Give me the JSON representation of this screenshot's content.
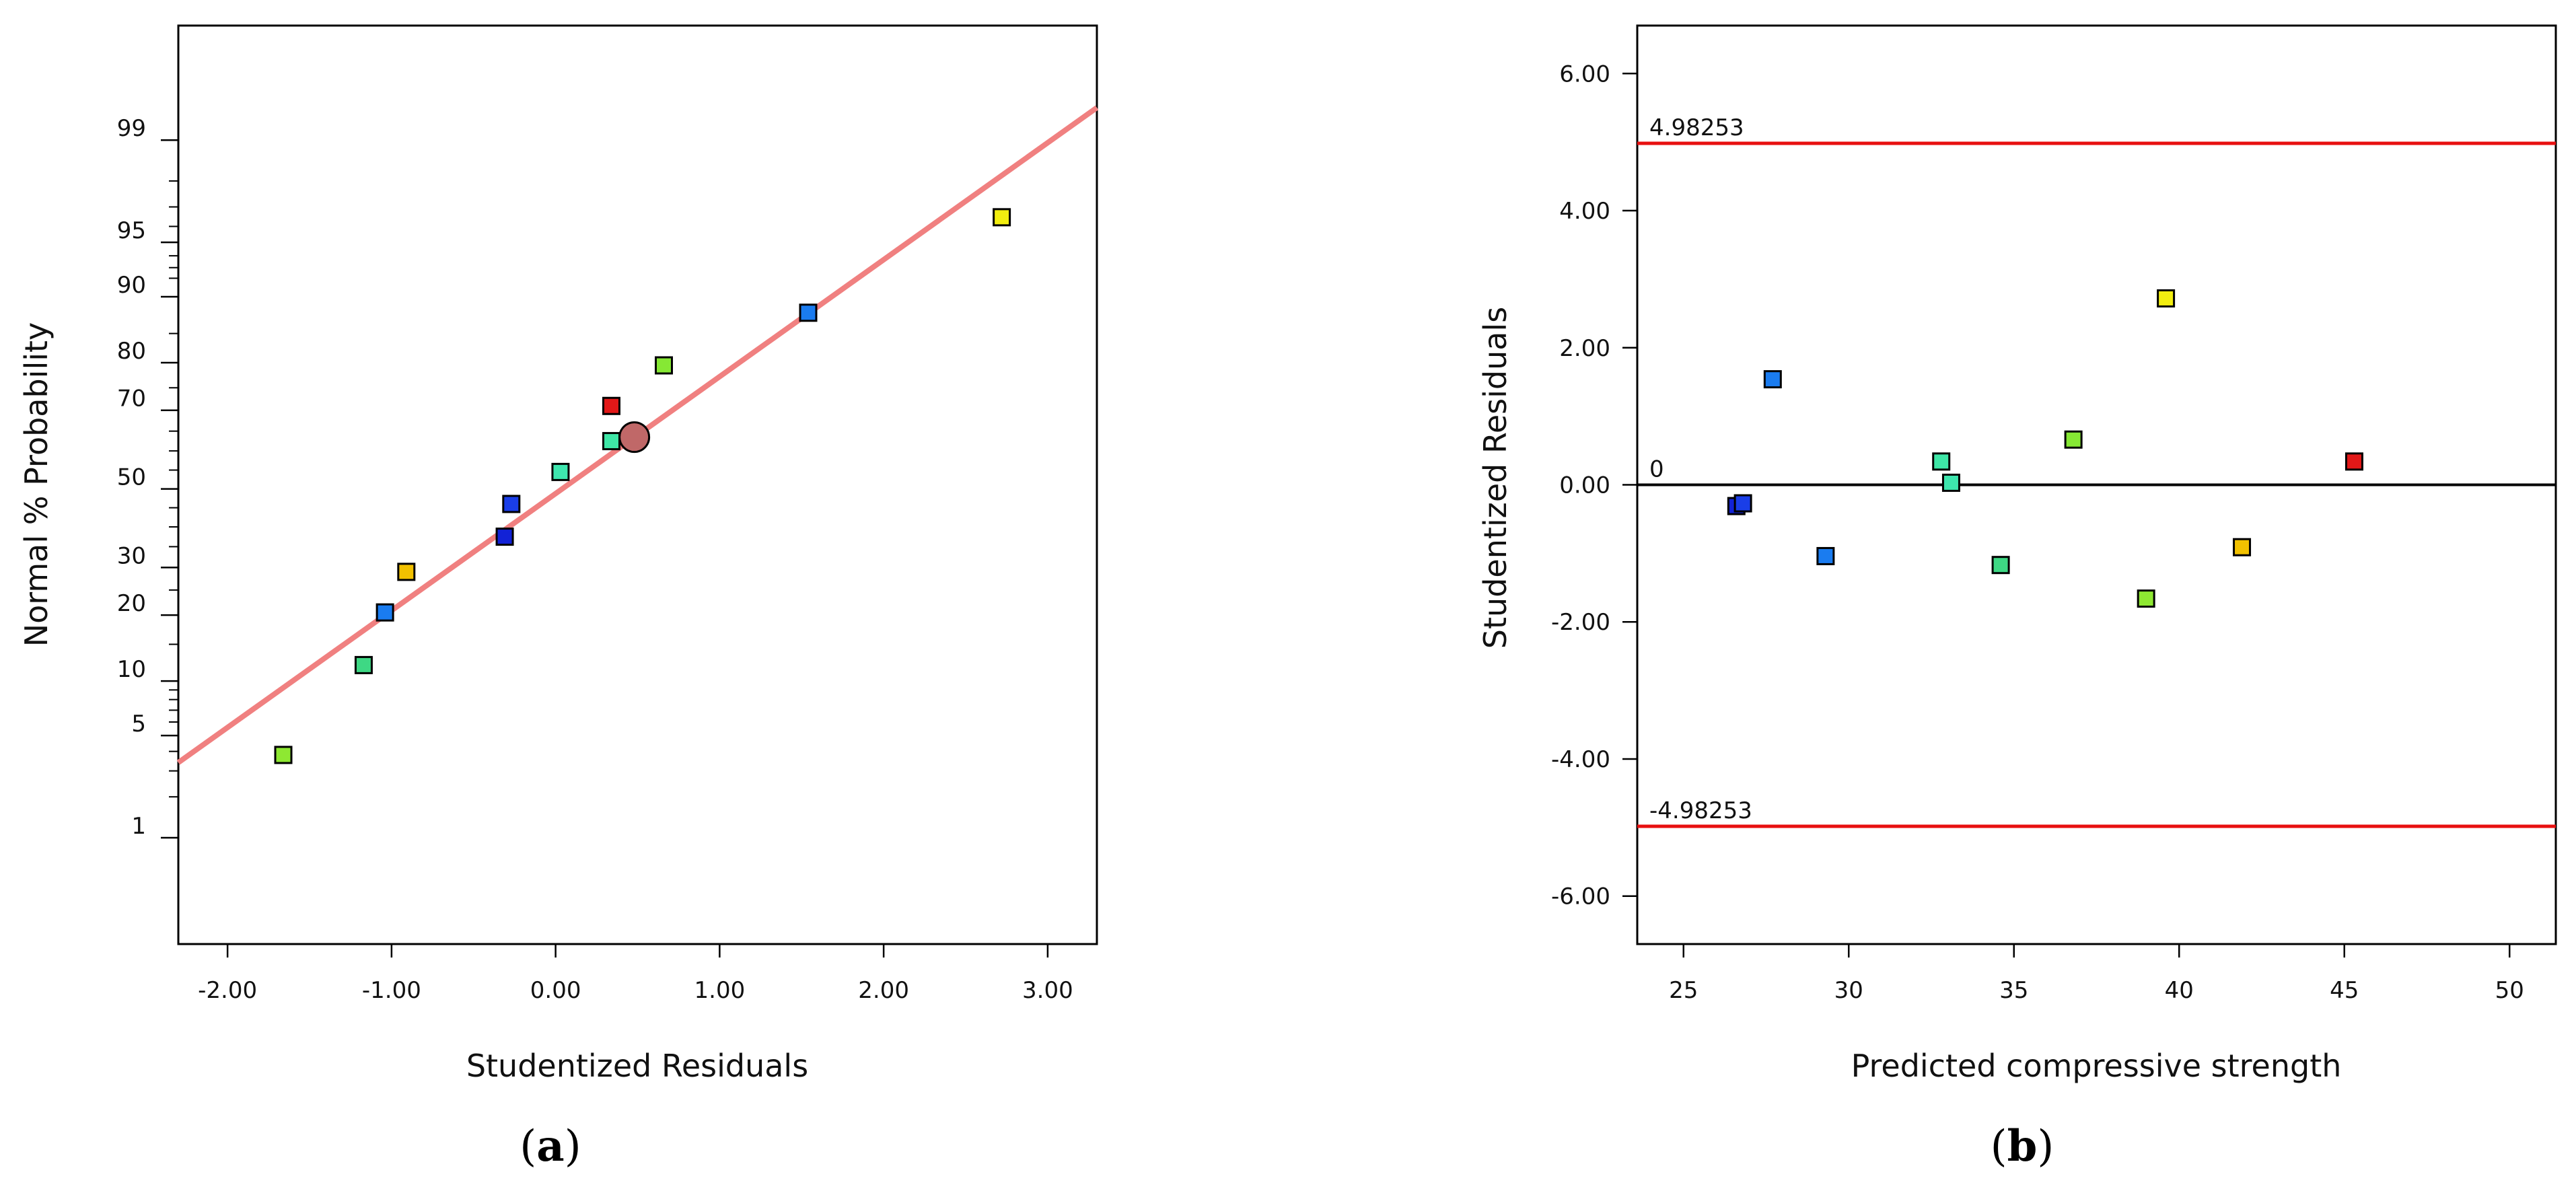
{
  "chart_data": [
    {
      "type": "scatter",
      "panel_label": {
        "open": "(",
        "letter": "a",
        "close": ")"
      },
      "xlabel": "Studentized Residuals",
      "ylabel": "Normal % Probability",
      "xlim": [
        -2.3,
        3.3
      ],
      "x_ticks": [
        "-2.00",
        "-1.00",
        "0.00",
        "1.00",
        "2.00",
        "3.00"
      ],
      "x_tick_values": [
        -2,
        -1,
        0,
        1,
        2,
        3
      ],
      "y_scale": "normal_probability",
      "ylim_percent": [
        0.12,
        99.9
      ],
      "y_major_ticks": [
        "1",
        "5",
        "10",
        "20",
        "30",
        "50",
        "70",
        "80",
        "90",
        "95",
        "99"
      ],
      "y_major_values": [
        1,
        5,
        10,
        20,
        30,
        50,
        70,
        80,
        90,
        95,
        99
      ],
      "y_minor_values": [
        2,
        3,
        4,
        6,
        7,
        8,
        9,
        15,
        25,
        35,
        40,
        45,
        55,
        60,
        65,
        75,
        85,
        92,
        93,
        94,
        96,
        97,
        98
      ],
      "fit_line": {
        "x": [
          -2.3,
          3.3
        ],
        "y_percent": [
          3.4,
          99.45
        ],
        "color": "#f08080"
      },
      "highlight_point": {
        "x": 0.48,
        "y_percent": 63.5,
        "color": "#c06868"
      },
      "points": [
        {
          "x": -1.66,
          "y_percent": 3.8,
          "color": "#8ee832"
        },
        {
          "x": -1.17,
          "y_percent": 12.0,
          "color": "#3ed884"
        },
        {
          "x": -1.04,
          "y_percent": 20.5,
          "color": "#1a7cf0"
        },
        {
          "x": -0.91,
          "y_percent": 29.0,
          "color": "#f2c100"
        },
        {
          "x": -0.31,
          "y_percent": 37.5,
          "color": "#1222d6"
        },
        {
          "x": -0.27,
          "y_percent": 46.0,
          "color": "#1a3ee8"
        },
        {
          "x": 0.03,
          "y_percent": 54.5,
          "color": "#3ee6ae"
        },
        {
          "x": 0.34,
          "y_percent": 62.5,
          "color": "#3ee6a6"
        },
        {
          "x": 0.34,
          "y_percent": 71.0,
          "color": "#e21818"
        },
        {
          "x": 0.66,
          "y_percent": 79.5,
          "color": "#86e834"
        },
        {
          "x": 1.54,
          "y_percent": 88.0,
          "color": "#1a7cf0"
        },
        {
          "x": 2.72,
          "y_percent": 96.5,
          "color": "#f2ee10"
        }
      ]
    },
    {
      "type": "scatter",
      "panel_label": {
        "open": "(",
        "letter": "b",
        "close": ")"
      },
      "xlabel": "Predicted compressive strength",
      "ylabel": "Studentized Residuals",
      "xlim": [
        23.6,
        51.4
      ],
      "ylim": [
        -6.7,
        6.7
      ],
      "x_ticks": [
        "25",
        "30",
        "35",
        "40",
        "45",
        "50"
      ],
      "x_tick_values": [
        25,
        30,
        35,
        40,
        45,
        50
      ],
      "y_ticks": [
        "6.00",
        "4.00",
        "2.00",
        "0.00",
        "-2.00",
        "-4.00",
        "-6.00"
      ],
      "y_tick_values": [
        6,
        4,
        2,
        0,
        -2,
        -4,
        -6
      ],
      "reference_lines": [
        {
          "y": 4.98253,
          "label": "4.98253",
          "color": "#e81010"
        },
        {
          "y": 0,
          "label": "0",
          "color": "#000000"
        },
        {
          "y": -4.98253,
          "label": "-4.98253",
          "color": "#e81010"
        }
      ],
      "points": [
        {
          "x": 26.6,
          "y": -0.31,
          "color": "#1222d6"
        },
        {
          "x": 26.8,
          "y": -0.27,
          "color": "#1a3ee8"
        },
        {
          "x": 27.7,
          "y": 1.54,
          "color": "#1a7cf0"
        },
        {
          "x": 29.3,
          "y": -1.04,
          "color": "#1a7cf0"
        },
        {
          "x": 32.8,
          "y": 0.34,
          "color": "#3ee6a6"
        },
        {
          "x": 33.1,
          "y": 0.03,
          "color": "#3ee6ae"
        },
        {
          "x": 34.6,
          "y": -1.17,
          "color": "#3ed884"
        },
        {
          "x": 36.8,
          "y": 0.66,
          "color": "#86e834"
        },
        {
          "x": 39.0,
          "y": -1.66,
          "color": "#8ee832"
        },
        {
          "x": 39.6,
          "y": 2.72,
          "color": "#f2ee10"
        },
        {
          "x": 41.9,
          "y": -0.91,
          "color": "#f2c100"
        },
        {
          "x": 45.3,
          "y": 0.34,
          "color": "#e21818"
        }
      ]
    }
  ]
}
